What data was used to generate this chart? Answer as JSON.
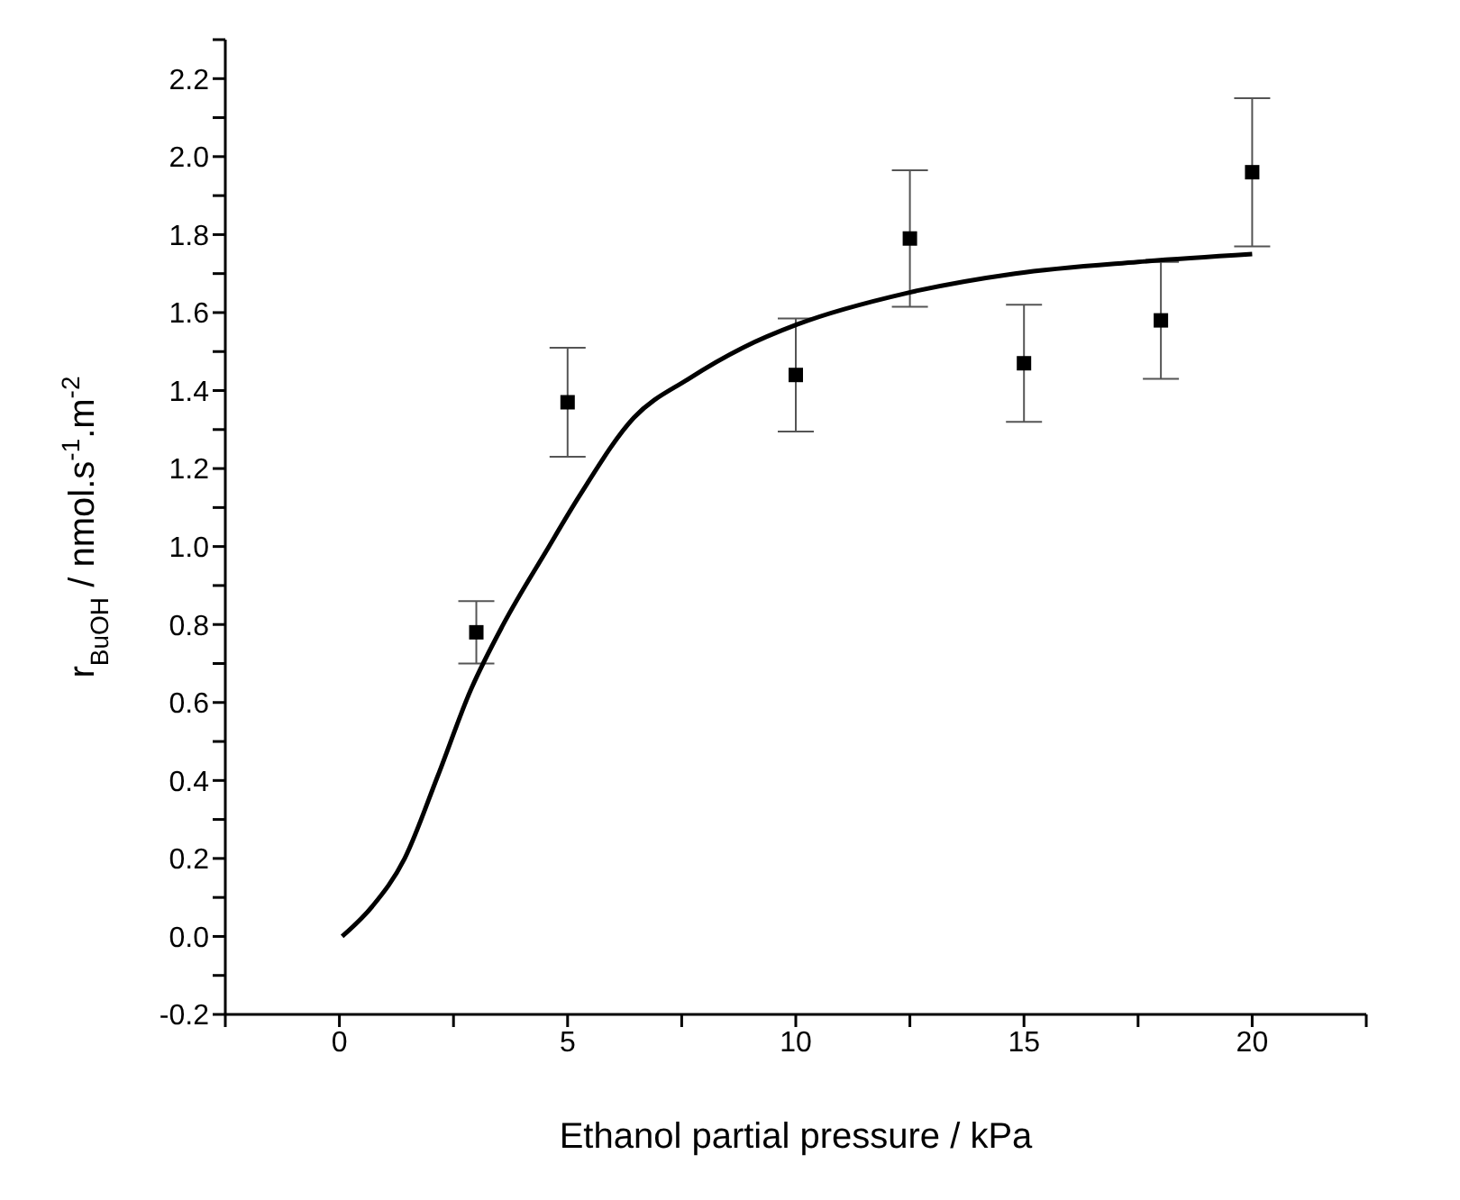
{
  "chart_data": {
    "type": "scatter",
    "xlabel": "Ethanol partial pressure / kPa",
    "ylabel": "r$_{BuOH}$ / nmol.s$^{-1}$.m$^{-2}$",
    "xlim": [
      -2.5,
      22.5
    ],
    "xticks": [
      {
        "value": -2.5,
        "label": null
      },
      0,
      {
        "value": 2.5,
        "label": null
      },
      5,
      {
        "value": 7.5,
        "label": null
      },
      10,
      {
        "value": 12.5,
        "label": null
      },
      15,
      {
        "value": 17.5,
        "label": null
      },
      20,
      {
        "value": 22.5,
        "label": null
      }
    ],
    "ylim": [
      -0.2,
      2.3
    ],
    "yticks": [
      -0.2,
      {
        "value": -0.1,
        "label": null
      },
      {
        "value": 0,
        "label": "0.0"
      },
      {
        "value": 0.1,
        "label": null
      },
      0.2,
      {
        "value": 0.3,
        "label": null
      },
      0.4,
      {
        "value": 0.5,
        "label": null
      },
      0.6,
      {
        "value": 0.7,
        "label": null
      },
      0.8,
      {
        "value": 0.9,
        "label": null
      },
      {
        "value": 1,
        "label": "1.0"
      },
      {
        "value": 1.1,
        "label": null
      },
      1.2,
      {
        "value": 1.3,
        "label": null
      },
      1.4,
      {
        "value": 1.5,
        "label": null
      },
      1.6,
      {
        "value": 1.7,
        "label": null
      },
      1.8,
      {
        "value": 1.9,
        "label": null
      },
      {
        "value": 2,
        "label": "2.0"
      },
      {
        "value": 2.1,
        "label": null
      },
      2.2,
      {
        "value": 2.3,
        "label": null
      }
    ],
    "marker": "square",
    "series": [
      {
        "color": "#000000",
        "x": [
          3,
          5,
          10,
          12.5,
          15,
          18,
          20
        ],
        "values": [
          0.78,
          1.37,
          1.44,
          1.79,
          1.47,
          1.58,
          1.96
        ],
        "errors": [
          0.08,
          0.14,
          0.145,
          0.175,
          0.15,
          0.15,
          0.19
        ]
      },
      {
        "type": "line",
        "color": "#000000",
        "marker": "none",
        "line_style": "solid",
        "x": [
          0.06,
          0.72,
          1.43,
          2.15,
          2.87,
          3.59,
          4.54,
          5.26,
          6.45,
          7.65,
          8.84,
          10.04,
          12.43,
          14.8,
          17.5,
          20
        ],
        "values": [
          0,
          0.077,
          0.2,
          0.41,
          0.63,
          0.8,
          0.99,
          1.13,
          1.33,
          1.43,
          1.51,
          1.57,
          1.65,
          1.7,
          1.73,
          1.75
        ]
      }
    ]
  }
}
